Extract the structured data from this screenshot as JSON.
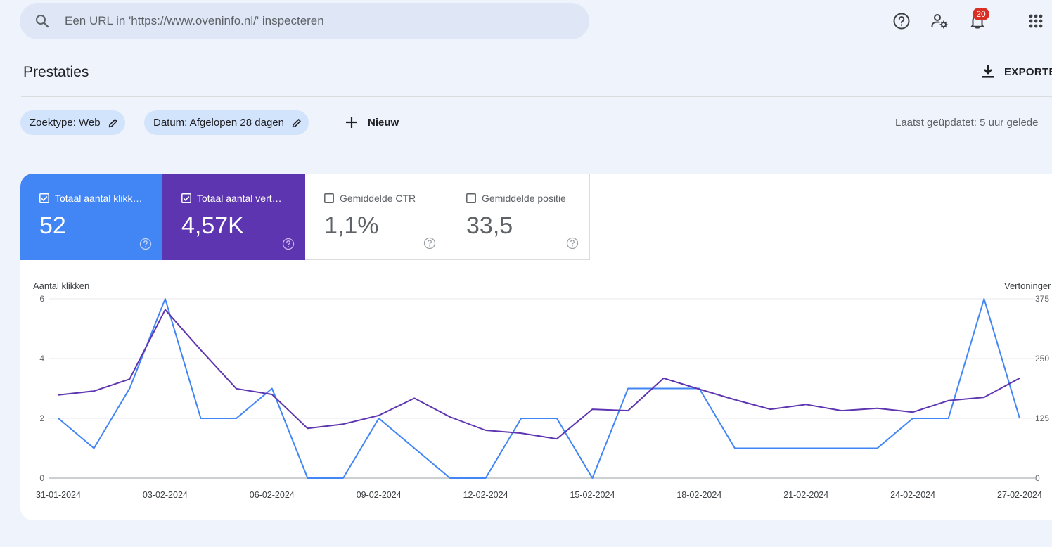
{
  "search": {
    "placeholder": "Een URL in 'https://www.oveninfo.nl/' inspecteren",
    "icon": "search-icon"
  },
  "topbar": {
    "icons": [
      "help-icon",
      "manage-users-icon",
      "notifications-icon",
      "apps-grid-icon"
    ],
    "notification_count": "20"
  },
  "page": {
    "title": "Prestaties",
    "export_label": "EXPORTE"
  },
  "filters": {
    "search_type": "Zoektype: Web",
    "date": "Datum: Afgelopen 28 dagen",
    "new_label": "Nieuw",
    "last_updated": "Laatst geüpdatet: 5 uur gelede"
  },
  "metrics": [
    {
      "label": "Totaal aantal klikk…",
      "value": "52",
      "checked": true,
      "color": "#4285f4"
    },
    {
      "label": "Totaal aantal vert…",
      "value": "4,57K",
      "checked": true,
      "color": "#5e35b1"
    },
    {
      "label": "Gemiddelde CTR",
      "value": "1,1%",
      "checked": false,
      "color": "#ffffff"
    },
    {
      "label": "Gemiddelde positie",
      "value": "33,5",
      "checked": false,
      "color": "#ffffff"
    }
  ],
  "chart_data": {
    "type": "line",
    "x": [
      "31-01-2024",
      "01-02-2024",
      "02-02-2024",
      "03-02-2024",
      "04-02-2024",
      "05-02-2024",
      "06-02-2024",
      "07-02-2024",
      "08-02-2024",
      "09-02-2024",
      "10-02-2024",
      "11-02-2024",
      "12-02-2024",
      "13-02-2024",
      "14-02-2024",
      "15-02-2024",
      "16-02-2024",
      "17-02-2024",
      "18-02-2024",
      "19-02-2024",
      "20-02-2024",
      "21-02-2024",
      "22-02-2024",
      "23-02-2024",
      "24-02-2024",
      "25-02-2024",
      "26-02-2024",
      "27-02-2024"
    ],
    "x_tick_labels": [
      "31-01-2024",
      "03-02-2024",
      "06-02-2024",
      "09-02-2024",
      "12-02-2024",
      "15-02-2024",
      "18-02-2024",
      "21-02-2024",
      "24-02-2024",
      "27-02-2024"
    ],
    "y_left_label": "Aantal klikken",
    "y_left_ticks": [
      "0",
      "2",
      "4",
      "6"
    ],
    "y_left_lim": [
      0,
      6
    ],
    "y_right_label": "Vertoninger",
    "y_right_ticks": [
      "0",
      "125",
      "250",
      "375"
    ],
    "y_right_lim": [
      0,
      375
    ],
    "grid": true,
    "series": [
      {
        "axis": "left",
        "color": "#4285f4",
        "values": [
          2,
          1,
          3,
          6,
          2,
          2,
          3,
          0,
          0,
          2,
          1,
          0,
          0,
          2,
          2,
          0,
          3,
          3,
          3,
          1,
          1,
          1,
          1,
          1,
          2,
          2,
          6,
          2
        ]
      },
      {
        "axis": "right",
        "color": "#5e35b1",
        "values": [
          174,
          182,
          207,
          352,
          268,
          187,
          175,
          104,
          113,
          131,
          167,
          128,
          100,
          94,
          82,
          144,
          141,
          209,
          186,
          164,
          144,
          154,
          141,
          146,
          138,
          162,
          169,
          209
        ]
      }
    ]
  }
}
